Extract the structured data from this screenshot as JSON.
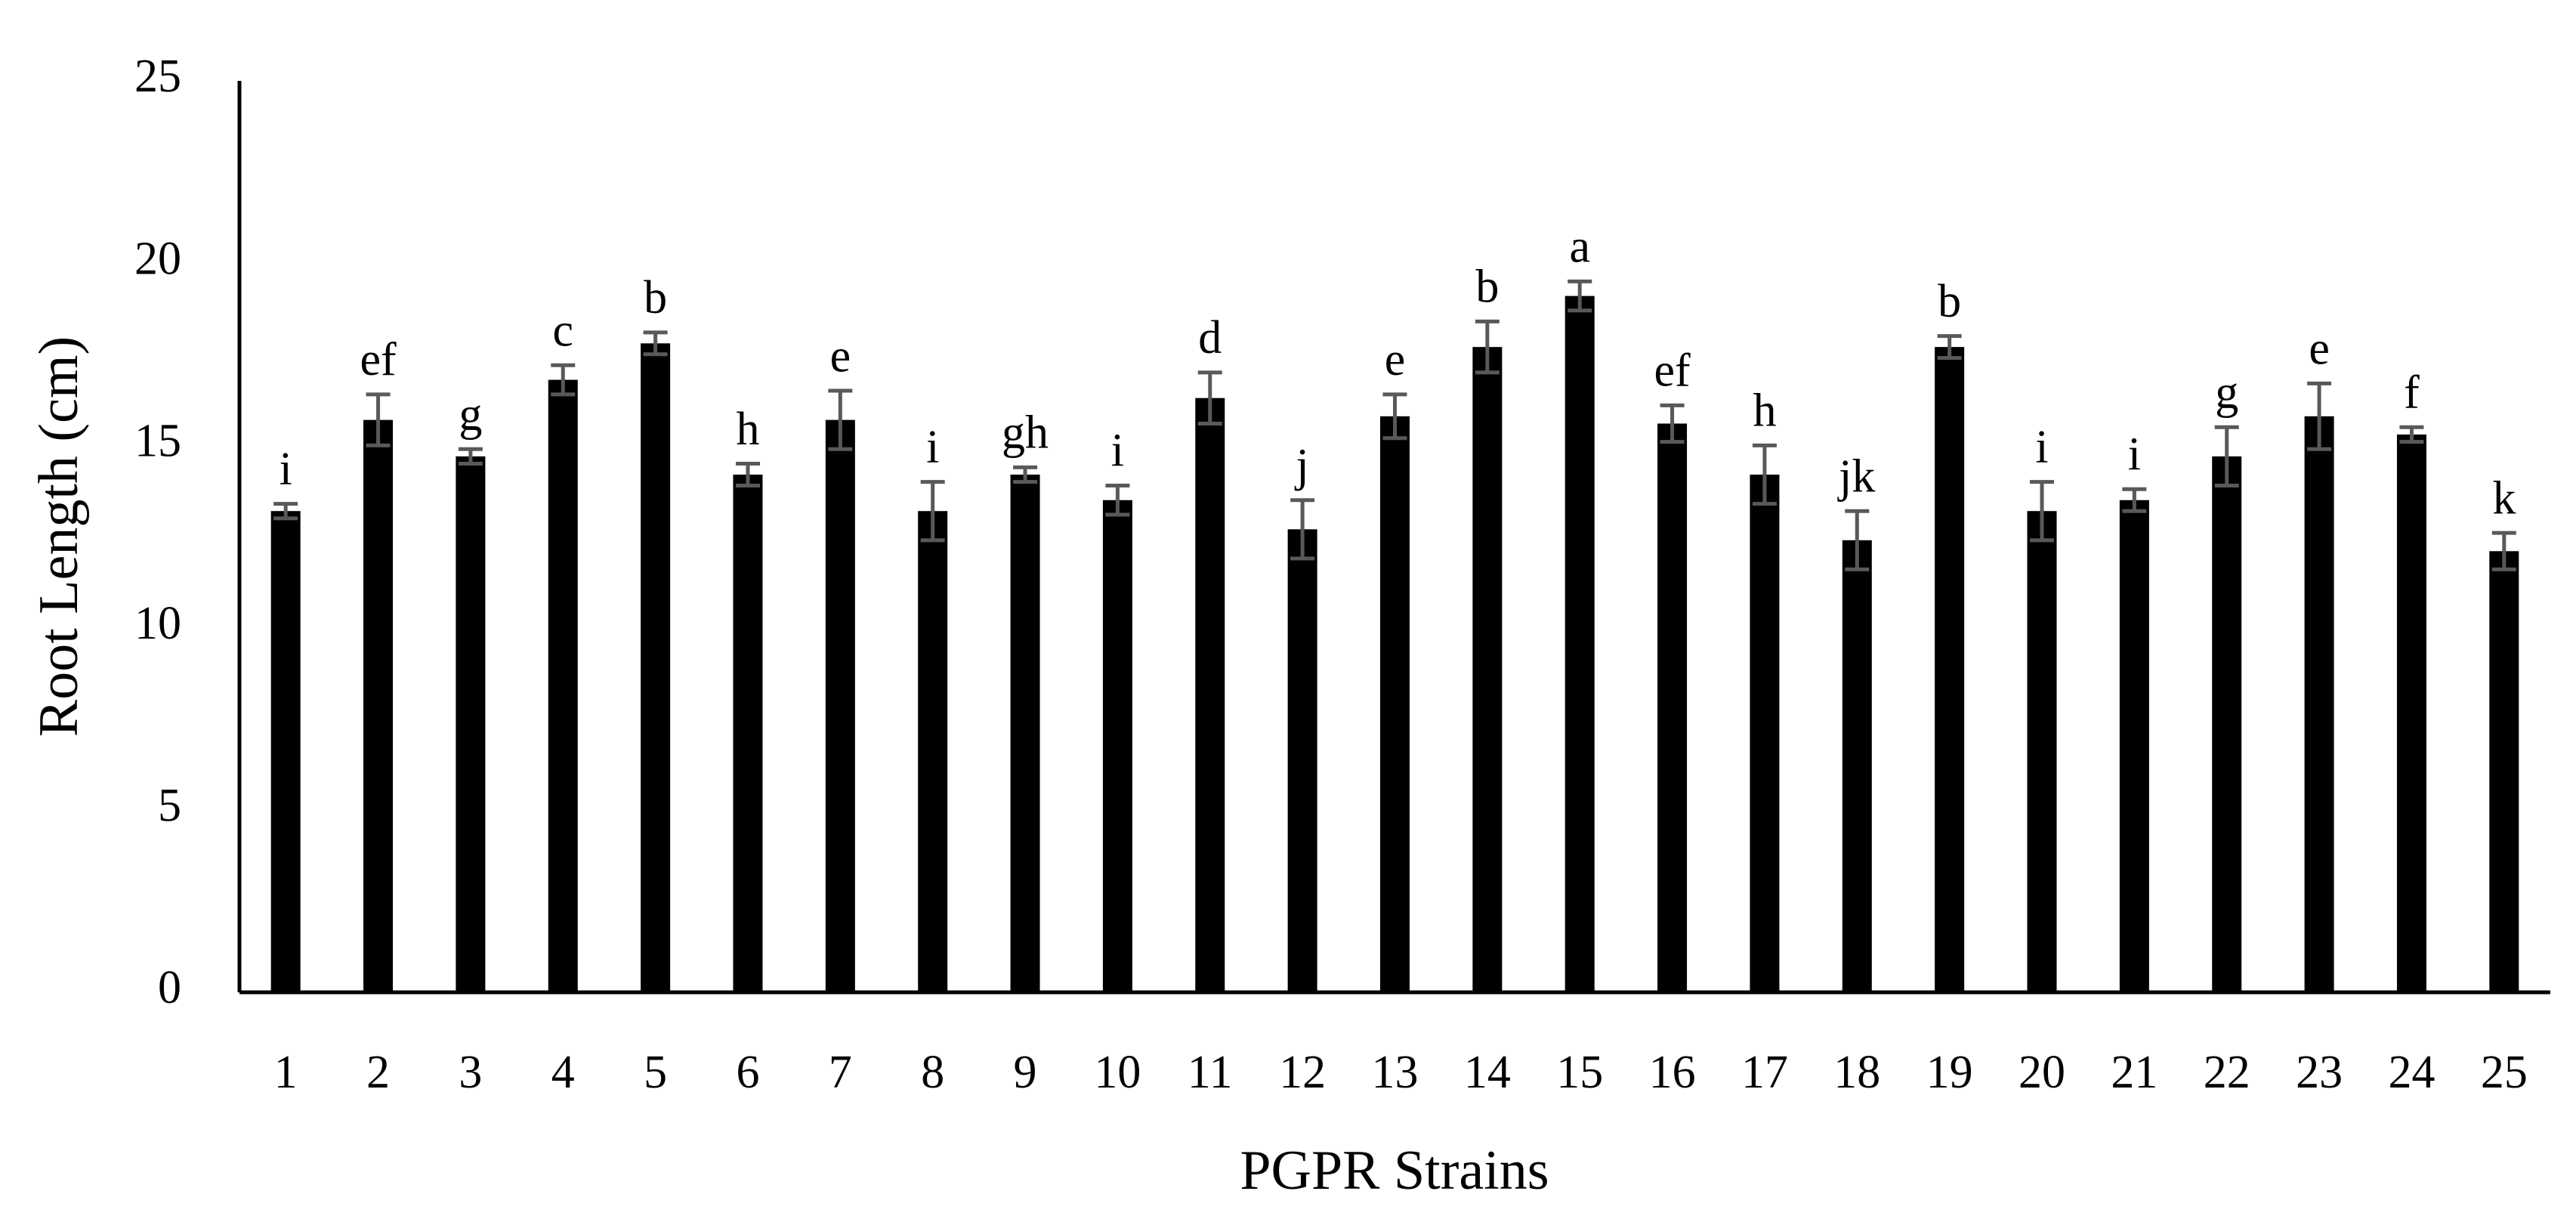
{
  "chart_data": {
    "type": "bar",
    "x_label": "PGPR Strains",
    "y_label": "Root Length (cm)",
    "categories": [
      "1",
      "2",
      "3",
      "4",
      "5",
      "6",
      "7",
      "8",
      "9",
      "10",
      "11",
      "12",
      "13",
      "14",
      "15",
      "16",
      "17",
      "18",
      "19",
      "20",
      "21",
      "22",
      "23",
      "24",
      "25"
    ],
    "values": [
      13.2,
      15.7,
      14.7,
      16.8,
      17.8,
      14.2,
      15.7,
      13.2,
      14.2,
      13.5,
      16.3,
      12.7,
      15.8,
      17.7,
      19.1,
      15.6,
      14.2,
      12.4,
      17.7,
      13.2,
      13.5,
      14.7,
      15.8,
      15.3,
      12.1
    ],
    "errors": [
      0.2,
      0.7,
      0.2,
      0.4,
      0.3,
      0.3,
      0.8,
      0.8,
      0.2,
      0.4,
      0.7,
      0.8,
      0.6,
      0.7,
      0.4,
      0.5,
      0.8,
      0.8,
      0.3,
      0.8,
      0.3,
      0.8,
      0.9,
      0.2,
      0.5
    ],
    "letters": [
      "i",
      "ef",
      "g",
      "c",
      "b",
      "h",
      "e",
      "i",
      "gh",
      "i",
      "d",
      "j",
      "e",
      "b",
      "a",
      "ef",
      "h",
      "jk",
      "b",
      "i",
      "i",
      "g",
      "e",
      "f",
      "k"
    ],
    "color": "#000000",
    "error_color": "#595959",
    "ylim": [
      0,
      25
    ],
    "yticks": [
      0,
      5,
      10,
      15,
      20,
      25
    ],
    "grid": false
  }
}
